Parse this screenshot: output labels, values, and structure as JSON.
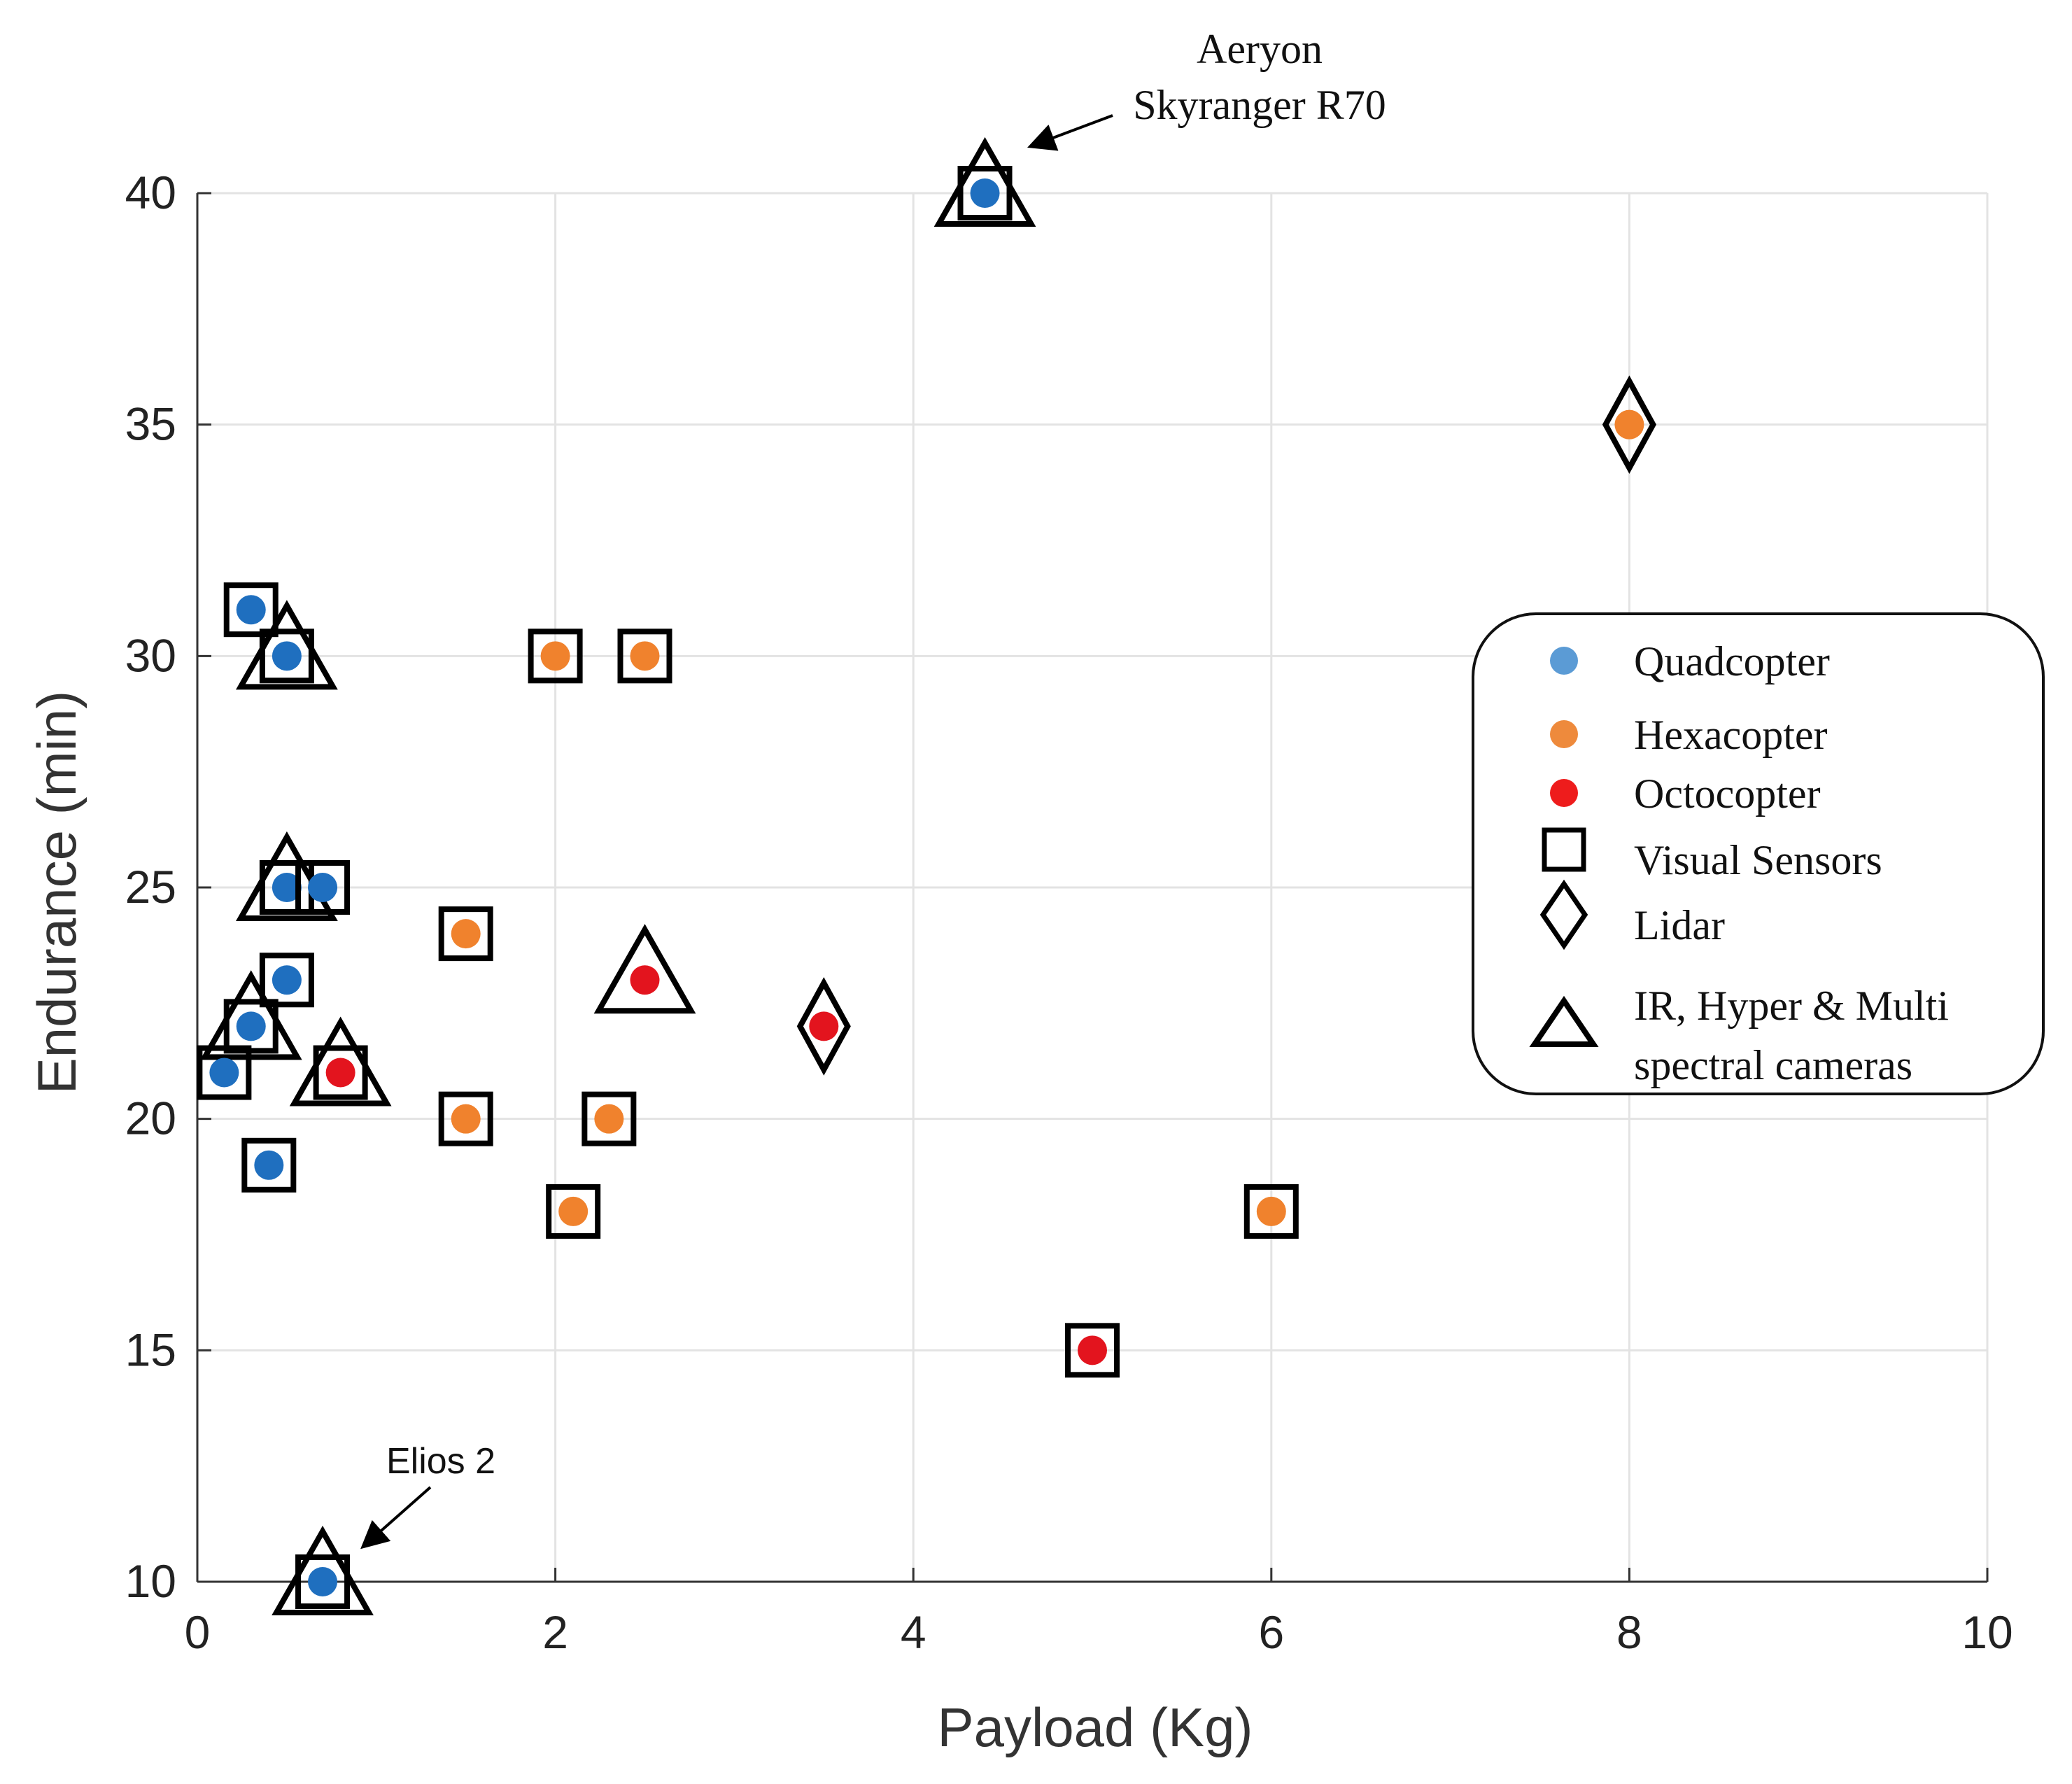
{
  "chart_data": {
    "type": "scatter",
    "title": "",
    "xlabel": "Payload (Kg)",
    "ylabel": "Endurance (min)",
    "xlim": [
      0,
      10
    ],
    "ylim": [
      10,
      41
    ],
    "xticks": [
      0,
      2,
      4,
      6,
      8,
      10
    ],
    "yticks": [
      10,
      15,
      20,
      25,
      30,
      35,
      40
    ],
    "grid": true,
    "legend_position": "right",
    "colors": {
      "Quadcopter": "#1f6fbf",
      "Hexacopter": "#f0822d",
      "Octocopter": "#e3141e"
    },
    "legend": [
      {
        "label": "Quadcopter",
        "kind": "dot",
        "color": "#5b9bd5"
      },
      {
        "label": "Hexacopter",
        "kind": "dot",
        "color": "#ee8a3c"
      },
      {
        "label": "Octocopter",
        "kind": "dot",
        "color": "#ee1c1c"
      },
      {
        "label": "Visual Sensors",
        "kind": "square"
      },
      {
        "label": "Lidar",
        "kind": "diamond"
      },
      {
        "label": "IR, Hyper & Multi",
        "label2": "spectral cameras",
        "kind": "triangle"
      }
    ],
    "points": [
      {
        "x": 0.3,
        "y": 31,
        "type": "Quadcopter",
        "sensors": [
          "square"
        ]
      },
      {
        "x": 0.5,
        "y": 30,
        "type": "Quadcopter",
        "sensors": [
          "square",
          "triangle"
        ]
      },
      {
        "x": 0.5,
        "y": 25,
        "type": "Quadcopter",
        "sensors": [
          "square",
          "triangle"
        ]
      },
      {
        "x": 0.7,
        "y": 25,
        "type": "Quadcopter",
        "sensors": [
          "square"
        ]
      },
      {
        "x": 0.5,
        "y": 23,
        "type": "Quadcopter",
        "sensors": [
          "square"
        ]
      },
      {
        "x": 0.3,
        "y": 22,
        "type": "Quadcopter",
        "sensors": [
          "square",
          "triangle"
        ]
      },
      {
        "x": 0.15,
        "y": 21,
        "type": "Quadcopter",
        "sensors": [
          "square"
        ]
      },
      {
        "x": 0.4,
        "y": 19,
        "type": "Quadcopter",
        "sensors": [
          "square"
        ]
      },
      {
        "x": 0.7,
        "y": 10,
        "type": "Quadcopter",
        "sensors": [
          "square",
          "triangle"
        ]
      },
      {
        "x": 4.4,
        "y": 40,
        "type": "Quadcopter",
        "sensors": [
          "square",
          "triangle"
        ]
      },
      {
        "x": 2.0,
        "y": 30,
        "type": "Hexacopter",
        "sensors": [
          "square"
        ]
      },
      {
        "x": 2.5,
        "y": 30,
        "type": "Hexacopter",
        "sensors": [
          "square"
        ]
      },
      {
        "x": 1.5,
        "y": 24,
        "type": "Hexacopter",
        "sensors": [
          "square"
        ]
      },
      {
        "x": 1.5,
        "y": 20,
        "type": "Hexacopter",
        "sensors": [
          "square"
        ]
      },
      {
        "x": 2.3,
        "y": 20,
        "type": "Hexacopter",
        "sensors": [
          "square"
        ]
      },
      {
        "x": 2.1,
        "y": 18,
        "type": "Hexacopter",
        "sensors": [
          "square"
        ]
      },
      {
        "x": 6.0,
        "y": 18,
        "type": "Hexacopter",
        "sensors": [
          "square"
        ]
      },
      {
        "x": 8.0,
        "y": 35,
        "type": "Hexacopter",
        "sensors": [
          "diamond"
        ]
      },
      {
        "x": 0.8,
        "y": 21,
        "type": "Octocopter",
        "sensors": [
          "square",
          "triangle"
        ]
      },
      {
        "x": 2.5,
        "y": 23,
        "type": "Octocopter",
        "sensors": [
          "triangle"
        ]
      },
      {
        "x": 3.5,
        "y": 22,
        "type": "Octocopter",
        "sensors": [
          "diamond"
        ]
      },
      {
        "x": 5.0,
        "y": 15,
        "type": "Octocopter",
        "sensors": [
          "square"
        ]
      }
    ],
    "annotations": [
      {
        "lines": [
          "Aeryon",
          "Skyranger R70"
        ],
        "target": {
          "x": 4.4,
          "y": 40
        },
        "style": "serif"
      },
      {
        "lines": [
          "Elios 2"
        ],
        "target": {
          "x": 0.7,
          "y": 10
        },
        "style": "sans"
      }
    ]
  }
}
